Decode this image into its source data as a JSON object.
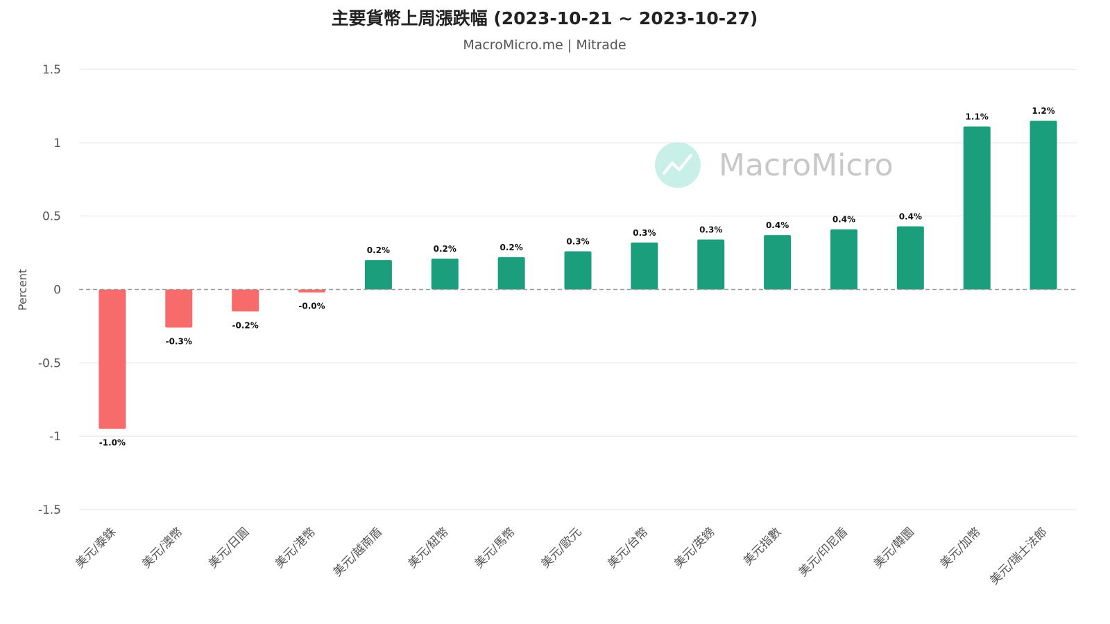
{
  "chart_data": {
    "type": "bar",
    "title": "主要貨幣上周漲跌幅 (2023-10-21 ~ 2023-10-27)",
    "subtitle": "MacroMicro.me | Mitrade",
    "xlabel": "",
    "ylabel": "Percent",
    "ylim": [
      -1.5,
      1.5
    ],
    "yticks": [
      1.5,
      1,
      0.5,
      0,
      -0.5,
      -1,
      -1.5
    ],
    "ytick_labels": [
      "1.5",
      "1",
      "0.5",
      "0",
      "-0.5",
      "-1",
      "-1.5"
    ],
    "grid": true,
    "categories": [
      "美元/泰銖",
      "美元/澳幣",
      "美元/日圓",
      "美元/港幣",
      "美元/越南盾",
      "美元/紐幣",
      "美元/馬幣",
      "美元/歐元",
      "美元/台幣",
      "美元/英鎊",
      "美元指數",
      "美元/印尼盾",
      "美元/韓圜",
      "美元/加幣",
      "美元/瑞士法郎"
    ],
    "values": [
      -0.95,
      -0.26,
      -0.15,
      -0.02,
      0.2,
      0.21,
      0.22,
      0.26,
      0.32,
      0.34,
      0.37,
      0.41,
      0.43,
      1.11,
      1.15
    ],
    "data_labels": [
      "-1.0%",
      "-0.3%",
      "-0.2%",
      "-0.0%",
      "0.2%",
      "0.2%",
      "0.2%",
      "0.3%",
      "0.3%",
      "0.3%",
      "0.4%",
      "0.4%",
      "0.4%",
      "1.1%",
      "1.2%"
    ],
    "colors": {
      "positive": "#1a9e7b",
      "negative": "#f76b6b",
      "grid": "#e3e3e3",
      "zero_line": "#999999"
    }
  },
  "watermark": {
    "text": "MacroMicro",
    "icon": "chart-trend-icon",
    "circle_color": "#c9f0e8",
    "icon_color": "#ffffff"
  }
}
